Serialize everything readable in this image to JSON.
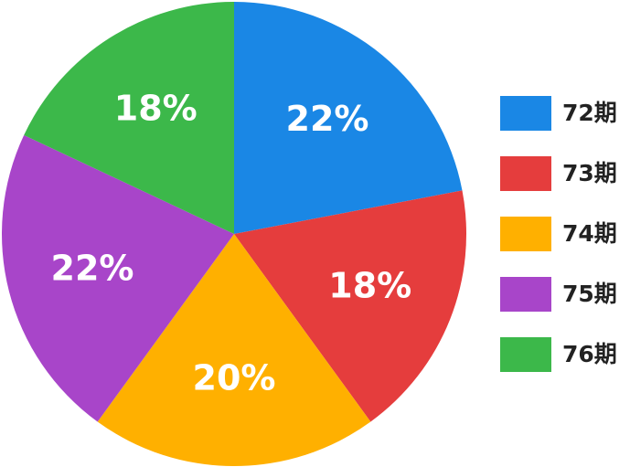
{
  "chart_data": {
    "type": "pie",
    "categories": [
      "72期",
      "73期",
      "74期",
      "75期",
      "76期"
    ],
    "values": [
      22,
      18,
      20,
      22,
      18
    ],
    "value_labels": [
      "22%",
      "18%",
      "20%",
      "22%",
      "18%"
    ],
    "colors": [
      "#1a87e5",
      "#e53d3d",
      "#ffb000",
      "#a845c9",
      "#3cb84a"
    ],
    "legend": "right"
  }
}
